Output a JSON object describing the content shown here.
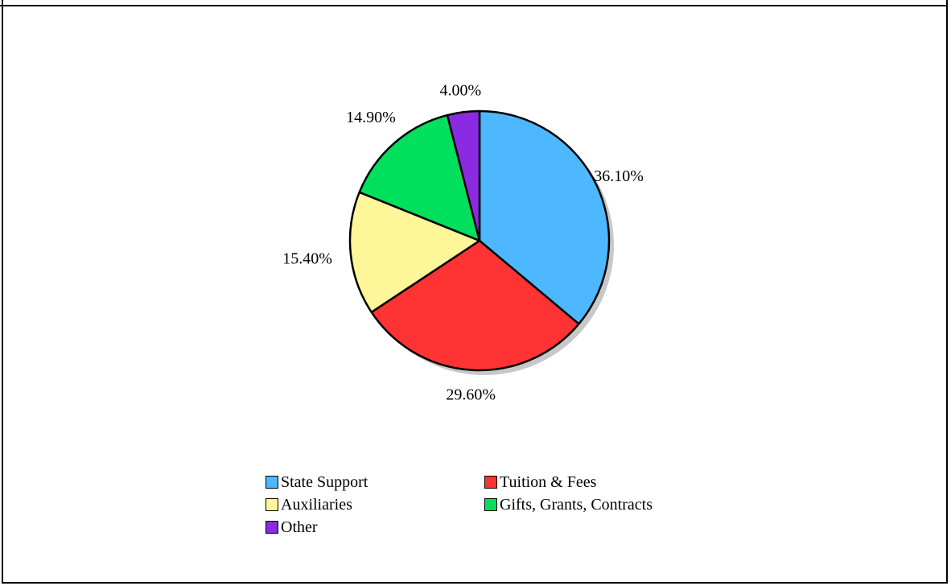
{
  "chart_data": {
    "type": "pie",
    "title": "",
    "slices": [
      {
        "name": "State Support",
        "value": 36.1,
        "label": "36.10%",
        "color": "#4db8ff"
      },
      {
        "name": "Tuition & Fees",
        "value": 29.6,
        "label": "29.60%",
        "color": "#ff3333"
      },
      {
        "name": "Auxiliaries",
        "value": 15.4,
        "label": "15.40%",
        "color": "#fff599"
      },
      {
        "name": "Gifts, Grants, Contracts",
        "value": 14.9,
        "label": "14.90%",
        "color": "#00e05c"
      },
      {
        "name": "Other",
        "value": 4.0,
        "label": "4.00%",
        "color": "#8a2be2"
      }
    ],
    "start_angle": "12 o'clock",
    "direction": "clockwise",
    "legend_position": "bottom"
  }
}
